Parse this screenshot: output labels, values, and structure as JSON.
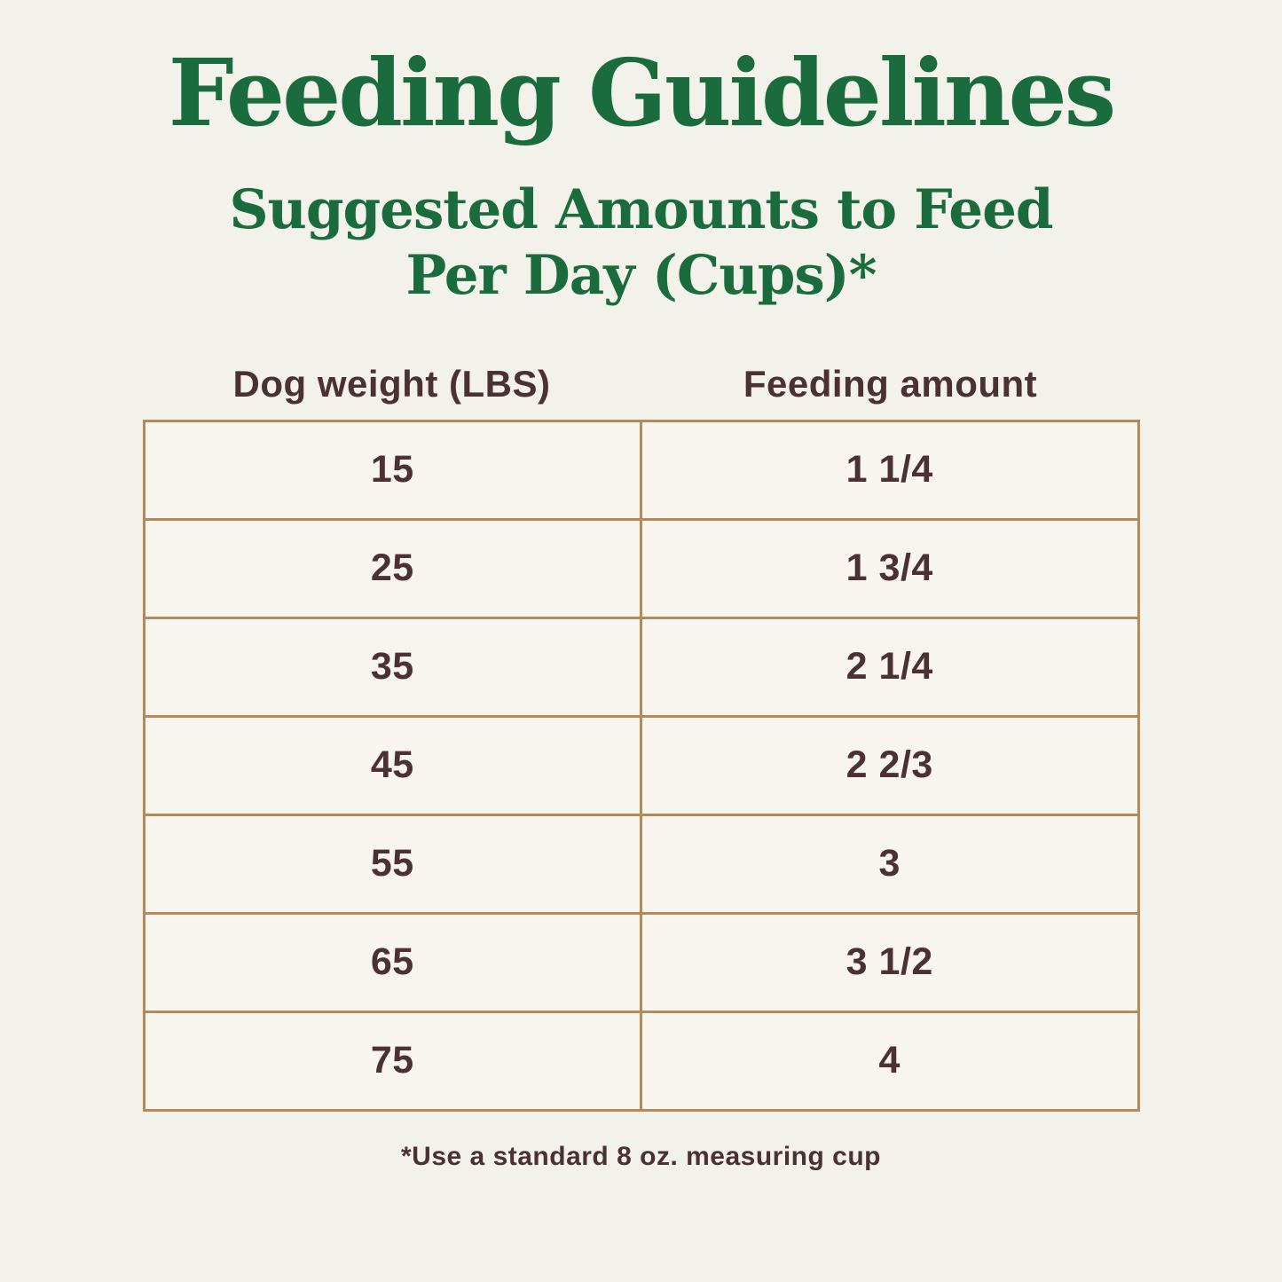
{
  "header": {
    "title": "Feeding Guidelines",
    "subtitle_lines": [
      "Suggested Amounts to Feed",
      "Per Day (Cups)*"
    ]
  },
  "table": {
    "columns": [
      "Dog weight (LBS)",
      "Feeding amount"
    ],
    "rows": [
      {
        "weight": "15",
        "amount": "1 1/4"
      },
      {
        "weight": "25",
        "amount": "1 3/4"
      },
      {
        "weight": "35",
        "amount": "2 1/4"
      },
      {
        "weight": "45",
        "amount": "2 2/3"
      },
      {
        "weight": "55",
        "amount": "3"
      },
      {
        "weight": "65",
        "amount": "3 1/2"
      },
      {
        "weight": "75",
        "amount": "4"
      }
    ]
  },
  "footnote": "*Use a standard 8 oz. measuring cup",
  "colors": {
    "background": "#f2f1ea",
    "title_green": "#1a6b3e",
    "text_brown": "#4b3134",
    "table_border_tan": "#b68a58",
    "cell_background": "#f7f5ee"
  }
}
